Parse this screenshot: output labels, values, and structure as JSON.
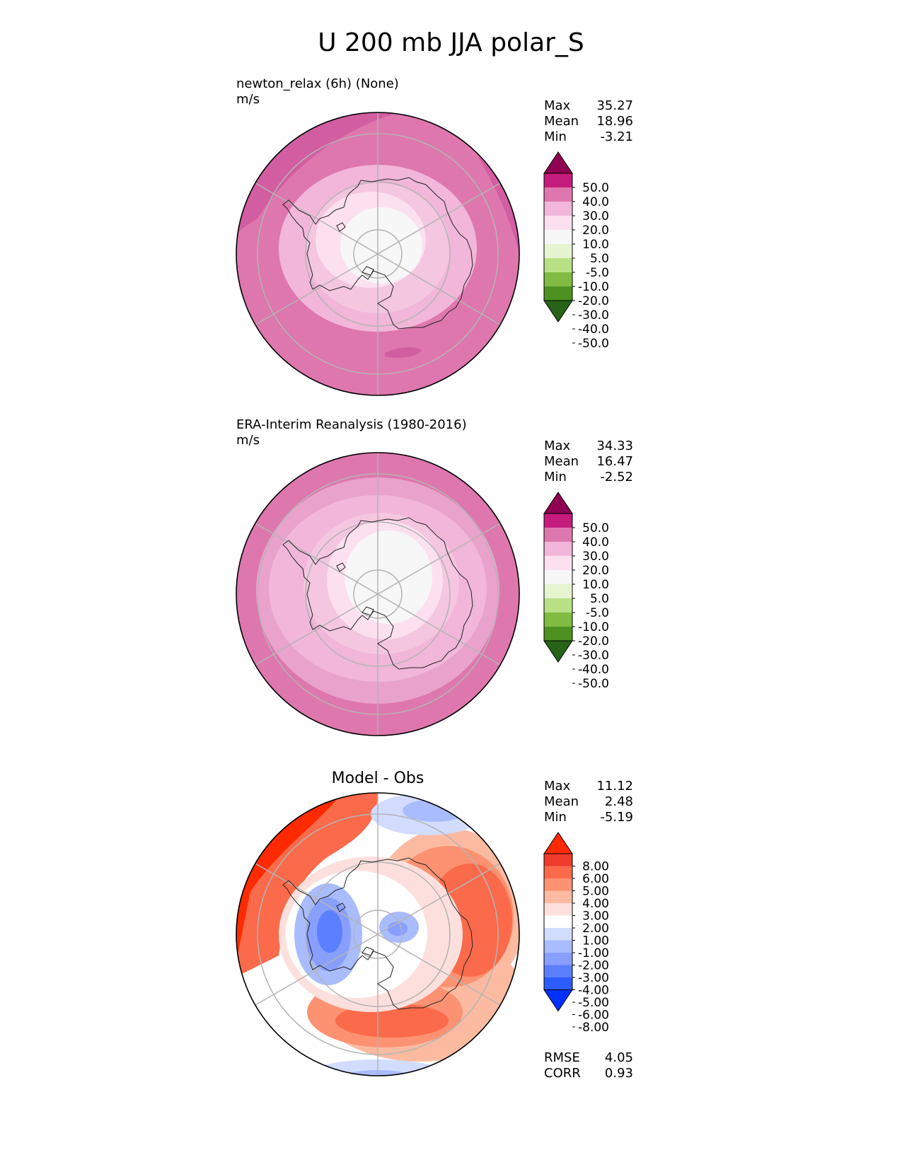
{
  "figure_title": "U 200 mb JJA polar_S",
  "stat_labels": {
    "max": "Max",
    "mean": "Mean",
    "min": "Min",
    "rmse": "RMSE",
    "corr": "CORR"
  },
  "colors": {
    "diverging_green_pink": [
      "#276419",
      "#4d9221",
      "#7fbc41",
      "#b8e186",
      "#e6f5d0",
      "#f7f7f7",
      "#fde0ef",
      "#f1b6da",
      "#de77ae",
      "#c51b7d",
      "#8e0152"
    ],
    "diverging_blue_red": [
      "#0032ff",
      "#2c5bff",
      "#5b7fff",
      "#889fff",
      "#a9bcff",
      "#d2dcff",
      "#ffffff",
      "#fde0dd",
      "#fcbba1",
      "#fc9272",
      "#fb6a4a",
      "#ef3b2c",
      "#ff2a00"
    ]
  },
  "panels": [
    {
      "id": "test",
      "title": "newton_relax (6h) (None)",
      "units": "m/s",
      "stats": {
        "max": "35.27",
        "mean": "18.96",
        "min": "-3.21"
      },
      "colorbar_levels": [
        "50.0",
        "40.0",
        "30.0",
        "20.0",
        "10.0",
        "5.0",
        "-5.0",
        "-10.0",
        "-20.0",
        "-30.0",
        "-40.0",
        "-50.0"
      ]
    },
    {
      "id": "reference",
      "title": "ERA-Interim Reanalysis (1980-2016)",
      "units": "m/s",
      "stats": {
        "max": "34.33",
        "mean": "16.47",
        "min": "-2.52"
      },
      "colorbar_levels": [
        "50.0",
        "40.0",
        "30.0",
        "20.0",
        "10.0",
        "5.0",
        "-5.0",
        "-10.0",
        "-20.0",
        "-30.0",
        "-40.0",
        "-50.0"
      ]
    },
    {
      "id": "diff",
      "title": "Model - Obs",
      "stats": {
        "max": "11.12",
        "mean": "2.48",
        "min": "-5.19"
      },
      "extra": {
        "rmse": "4.05",
        "corr": "0.93"
      },
      "colorbar_levels": [
        "8.00",
        "6.00",
        "5.00",
        "4.00",
        "3.00",
        "2.00",
        "1.00",
        "-1.00",
        "-2.00",
        "-3.00",
        "-4.00",
        "-5.00",
        "-6.00",
        "-8.00"
      ]
    }
  ],
  "chart_data": [
    {
      "type": "heatmap",
      "projection": "south polar stereographic",
      "title": "newton_relax (6h) (None)",
      "units": "m/s",
      "variable": "U 200 mb",
      "season": "JJA",
      "region": "polar_S",
      "summary": {
        "max": 35.27,
        "mean": 18.96,
        "min": -3.21
      },
      "levels": [
        -50,
        -40,
        -30,
        -20,
        -10,
        -5,
        5,
        10,
        20,
        30,
        40,
        50
      ]
    },
    {
      "type": "heatmap",
      "projection": "south polar stereographic",
      "title": "ERA-Interim Reanalysis (1980-2016)",
      "units": "m/s",
      "variable": "U 200 mb",
      "season": "JJA",
      "region": "polar_S",
      "summary": {
        "max": 34.33,
        "mean": 16.47,
        "min": -2.52
      },
      "levels": [
        -50,
        -40,
        -30,
        -20,
        -10,
        -5,
        5,
        10,
        20,
        30,
        40,
        50
      ]
    },
    {
      "type": "heatmap",
      "projection": "south polar stereographic",
      "title": "Model - Obs",
      "summary": {
        "max": 11.12,
        "mean": 2.48,
        "min": -5.19,
        "rmse": 4.05,
        "corr": 0.93
      },
      "levels": [
        -8,
        -6,
        -5,
        -4,
        -3,
        -2,
        -1,
        1,
        2,
        3,
        4,
        5,
        6,
        8
      ]
    }
  ]
}
